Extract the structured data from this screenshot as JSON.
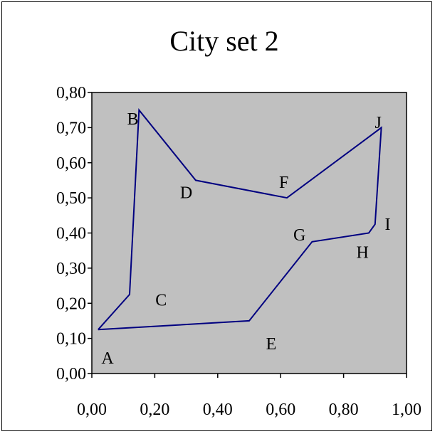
{
  "chart_data": {
    "type": "line",
    "title": "City set 2",
    "xlabel": "",
    "ylabel": "",
    "xlim": [
      0,
      1
    ],
    "ylim": [
      0,
      0.8
    ],
    "x_ticks": [
      "0,00",
      "0,20",
      "0,40",
      "0,60",
      "0,80",
      "1,00"
    ],
    "y_ticks": [
      "0,00",
      "0,10",
      "0,20",
      "0,30",
      "0,40",
      "0,50",
      "0,60",
      "0,70",
      "0,80"
    ],
    "grid": false,
    "plot_background": "#c0c0c0",
    "line_color": "#000080",
    "route": [
      {
        "x": 0.02,
        "y": 0.125
      },
      {
        "x": 0.12,
        "y": 0.225
      },
      {
        "x": 0.15,
        "y": 0.75
      },
      {
        "x": 0.33,
        "y": 0.55
      },
      {
        "x": 0.62,
        "y": 0.5
      },
      {
        "x": 0.92,
        "y": 0.7
      },
      {
        "x": 0.9,
        "y": 0.425
      },
      {
        "x": 0.88,
        "y": 0.4
      },
      {
        "x": 0.7,
        "y": 0.375
      },
      {
        "x": 0.5,
        "y": 0.15
      },
      {
        "x": 0.02,
        "y": 0.125
      }
    ],
    "cities": [
      {
        "label": "A",
        "x": 0.05,
        "y": 0.045
      },
      {
        "label": "B",
        "x": 0.13,
        "y": 0.725
      },
      {
        "label": "C",
        "x": 0.22,
        "y": 0.21
      },
      {
        "label": "D",
        "x": 0.3,
        "y": 0.515
      },
      {
        "label": "E",
        "x": 0.57,
        "y": 0.085
      },
      {
        "label": "F",
        "x": 0.61,
        "y": 0.545
      },
      {
        "label": "G",
        "x": 0.66,
        "y": 0.395
      },
      {
        "label": "H",
        "x": 0.86,
        "y": 0.345
      },
      {
        "label": "I",
        "x": 0.94,
        "y": 0.425
      },
      {
        "label": "J",
        "x": 0.91,
        "y": 0.715
      }
    ]
  }
}
